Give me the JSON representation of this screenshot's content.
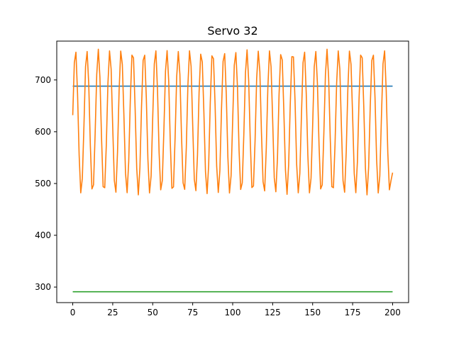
{
  "chart_data": {
    "type": "line",
    "title": "Servo 32",
    "xlabel": "",
    "ylabel": "",
    "xlim": [
      -10,
      210
    ],
    "ylim": [
      270,
      775
    ],
    "grid": false,
    "x_ticks": [
      0,
      25,
      50,
      75,
      100,
      125,
      150,
      175,
      200
    ],
    "y_ticks": [
      300,
      400,
      500,
      600,
      700
    ],
    "series": [
      {
        "color": "#1f77b4",
        "style": "constant",
        "x": [
          0,
          200
        ],
        "values": [
          688,
          688
        ]
      },
      {
        "color": "#2ca02c",
        "style": "constant",
        "x": [
          0,
          200
        ],
        "values": [
          291,
          291
        ]
      },
      {
        "color": "#ff7f0e",
        "style": "oscillation",
        "x_start": 0,
        "x_end": 200,
        "period": 7.15,
        "peak": 755,
        "trough": 483,
        "start_value": 632,
        "end_value": 521,
        "x_min_label": "approx. 28 cycles between ~480 and ~760"
      }
    ]
  }
}
